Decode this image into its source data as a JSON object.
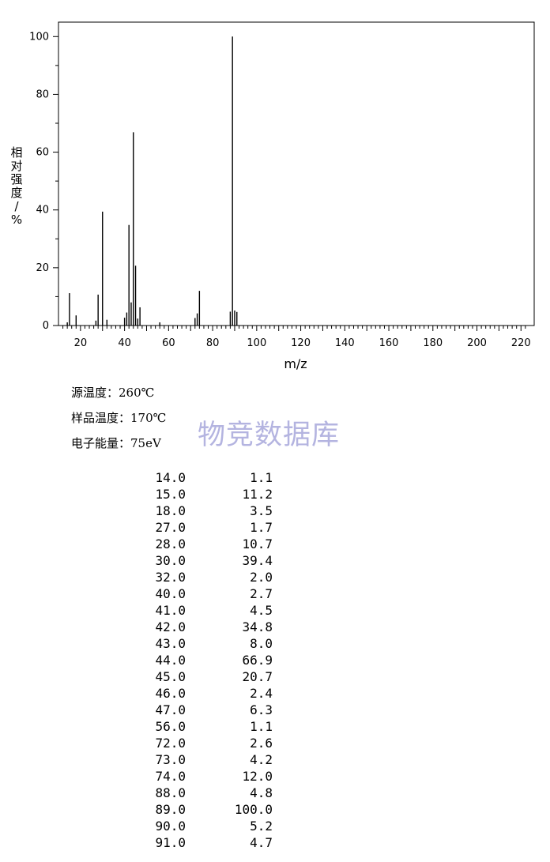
{
  "chart_data": {
    "type": "bar",
    "xlabel": "m/z",
    "ylabel": "相对强度/%",
    "xlim": [
      10,
      226
    ],
    "ylim": [
      0,
      105
    ],
    "xticks": [
      20,
      40,
      60,
      80,
      100,
      120,
      140,
      160,
      180,
      200,
      220
    ],
    "yticks": [
      0,
      20,
      40,
      60,
      80,
      100
    ],
    "points": [
      {
        "x": 14.0,
        "y": 1.1
      },
      {
        "x": 15.0,
        "y": 11.2
      },
      {
        "x": 18.0,
        "y": 3.5
      },
      {
        "x": 27.0,
        "y": 1.7
      },
      {
        "x": 28.0,
        "y": 10.7
      },
      {
        "x": 30.0,
        "y": 39.4
      },
      {
        "x": 32.0,
        "y": 2.0
      },
      {
        "x": 40.0,
        "y": 2.7
      },
      {
        "x": 41.0,
        "y": 4.5
      },
      {
        "x": 42.0,
        "y": 34.8
      },
      {
        "x": 43.0,
        "y": 8.0
      },
      {
        "x": 44.0,
        "y": 66.9
      },
      {
        "x": 45.0,
        "y": 20.7
      },
      {
        "x": 46.0,
        "y": 2.4
      },
      {
        "x": 47.0,
        "y": 6.3
      },
      {
        "x": 56.0,
        "y": 1.1
      },
      {
        "x": 72.0,
        "y": 2.6
      },
      {
        "x": 73.0,
        "y": 4.2
      },
      {
        "x": 74.0,
        "y": 12.0
      },
      {
        "x": 88.0,
        "y": 4.8
      },
      {
        "x": 89.0,
        "y": 100.0
      },
      {
        "x": 90.0,
        "y": 5.2
      },
      {
        "x": 91.0,
        "y": 4.7
      }
    ]
  },
  "conditions": {
    "source_temp": "源温度：260℃",
    "sample_temp": "样品温度：170℃",
    "electron_energy": "电子能量：75eV"
  },
  "watermark": "物竞数据库",
  "table": [
    {
      "mz": "14.0",
      "ab": "1.1"
    },
    {
      "mz": "15.0",
      "ab": "11.2"
    },
    {
      "mz": "18.0",
      "ab": "3.5"
    },
    {
      "mz": "27.0",
      "ab": "1.7"
    },
    {
      "mz": "28.0",
      "ab": "10.7"
    },
    {
      "mz": "30.0",
      "ab": "39.4"
    },
    {
      "mz": "32.0",
      "ab": "2.0"
    },
    {
      "mz": "40.0",
      "ab": "2.7"
    },
    {
      "mz": "41.0",
      "ab": "4.5"
    },
    {
      "mz": "42.0",
      "ab": "34.8"
    },
    {
      "mz": "43.0",
      "ab": "8.0"
    },
    {
      "mz": "44.0",
      "ab": "66.9"
    },
    {
      "mz": "45.0",
      "ab": "20.7"
    },
    {
      "mz": "46.0",
      "ab": "2.4"
    },
    {
      "mz": "47.0",
      "ab": "6.3"
    },
    {
      "mz": "56.0",
      "ab": "1.1"
    },
    {
      "mz": "72.0",
      "ab": "2.6"
    },
    {
      "mz": "73.0",
      "ab": "4.2"
    },
    {
      "mz": "74.0",
      "ab": "12.0"
    },
    {
      "mz": "88.0",
      "ab": "4.8"
    },
    {
      "mz": "89.0",
      "ab": "100.0"
    },
    {
      "mz": "90.0",
      "ab": "5.2"
    },
    {
      "mz": "91.0",
      "ab": "4.7"
    }
  ]
}
